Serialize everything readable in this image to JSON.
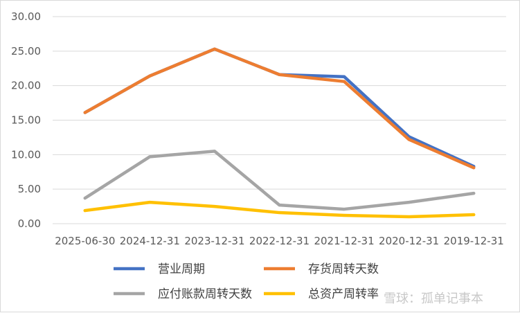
{
  "chart_data": {
    "type": "line",
    "categories": [
      "2025-06-30",
      "2024-12-31",
      "2023-12-31",
      "2022-12-31",
      "2021-12-31",
      "2020-12-31",
      "2019-12-31"
    ],
    "ylim": [
      0,
      30
    ],
    "yticks": [
      "0.00",
      "5.00",
      "10.00",
      "15.00",
      "20.00",
      "25.00",
      "30.00"
    ],
    "grid": "horizontal",
    "legend_position": "bottom",
    "series": [
      {
        "name": "营业周期",
        "color": "#4472C4",
        "values": [
          16.1,
          21.4,
          25.3,
          21.6,
          21.3,
          12.6,
          8.3
        ]
      },
      {
        "name": "存货周转天数",
        "color": "#ED7D31",
        "values": [
          16.1,
          21.4,
          25.3,
          21.6,
          20.6,
          12.2,
          8.1
        ]
      },
      {
        "name": "应付账款周转天数",
        "color": "#A5A5A5",
        "values": [
          3.7,
          9.7,
          10.5,
          2.7,
          2.1,
          3.1,
          4.4
        ]
      },
      {
        "name": "总资产周转率",
        "color": "#FFC000",
        "values": [
          1.9,
          3.1,
          2.5,
          1.6,
          1.2,
          1.0,
          1.3
        ]
      }
    ]
  },
  "watermark": "雪球：孤单记事本"
}
